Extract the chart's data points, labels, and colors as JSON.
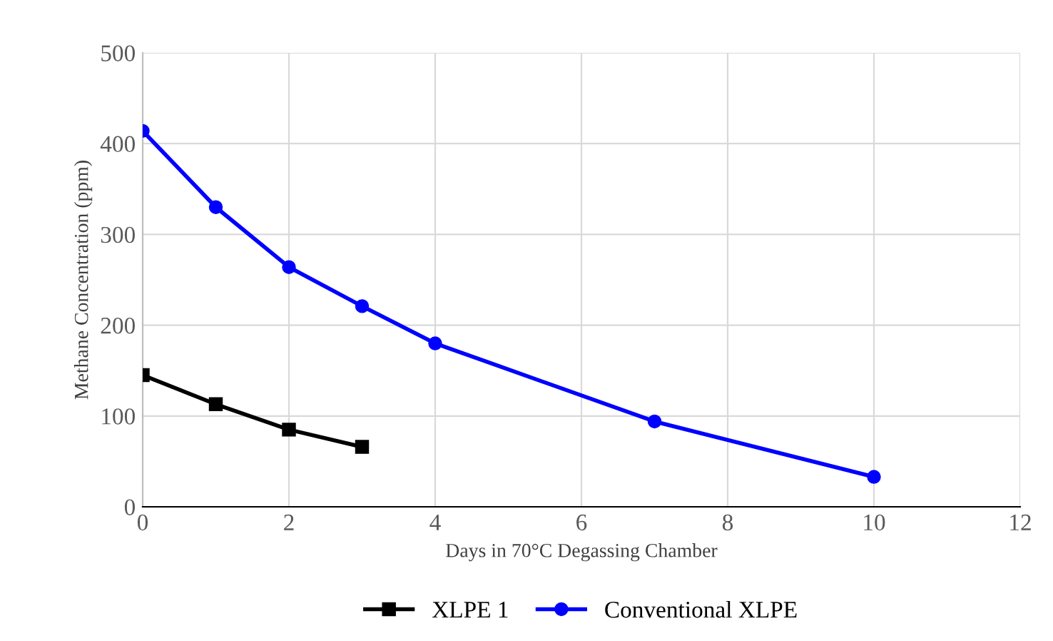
{
  "chart_data": {
    "type": "line",
    "xlabel": "Days in 70°C Degassing Chamber",
    "ylabel": "Methane Concentration (ppm)",
    "xlim": [
      0,
      12
    ],
    "xticks": [
      0,
      2,
      4,
      6,
      8,
      10,
      12
    ],
    "ylim": [
      0,
      500
    ],
    "yticks": [
      0,
      100,
      200,
      300,
      400,
      500
    ],
    "grid": true,
    "legend": "bottom",
    "series": [
      {
        "name": "XLPE 1",
        "color": "#000000",
        "marker": "square",
        "x": [
          0,
          1,
          2,
          3
        ],
        "values": [
          145,
          113,
          85,
          66
        ]
      },
      {
        "name": "Conventional XLPE",
        "color": "#0000ff",
        "marker": "circle",
        "x": [
          0,
          1,
          2,
          3,
          4,
          7,
          10
        ],
        "values": [
          414,
          330,
          264,
          221,
          180,
          94,
          33
        ]
      }
    ]
  }
}
